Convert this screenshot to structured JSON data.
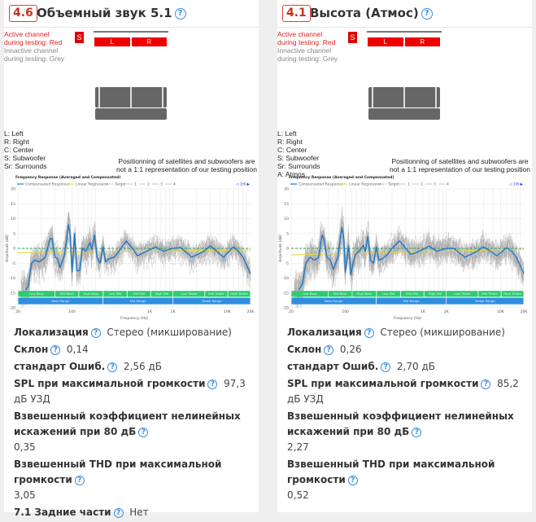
{
  "panels": [
    {
      "score": "4.6",
      "title": "Объемный звук 5.1",
      "diagram": {
        "active_1": "Active channel",
        "active_2": "during testing: Red",
        "inactive_1": "Innactive channel",
        "inactive_2": "during testing: Grey",
        "sub": "S",
        "left": "L",
        "right": "R",
        "keys": [
          "L: Left",
          "R: Right",
          "C: Center",
          "S: Subwoofer",
          "Sr: Surrounds"
        ],
        "note_1": "Positionning of satellites and subwoofers are",
        "note_2": "not a 1:1 representation of our testing position"
      },
      "specs": [
        {
          "label": "Локализация",
          "value": "Стерео (микширование)",
          "inline": true
        },
        {
          "label": "Склон",
          "value": "0,14",
          "inline": true
        },
        {
          "label": "стандарт Ошиб.",
          "value": "2,56 дБ",
          "inline": true
        },
        {
          "label": "SPL при максимальной громкости",
          "value": "97,3 дБ УЗД",
          "inline": true
        },
        {
          "label": "Взвешенный коэффициент нелинейных искажений при 80 дБ",
          "value": "0,35",
          "inline": false
        },
        {
          "label": "Взвешенный THD при максимальной громкости",
          "value": "3,05",
          "inline": false
        },
        {
          "label": "7.1 Задние части",
          "value": "Нет",
          "inline": true
        }
      ]
    },
    {
      "score": "4.1",
      "title": "Высота (Атмос)",
      "diagram": {
        "active_1": "Active channel",
        "active_2": "during testing: Red",
        "inactive_1": "Innactive channel",
        "inactive_2": "during testing: Grey",
        "sub": "S",
        "left": "L",
        "right": "R",
        "keys": [
          "L: Left",
          "R: Right",
          "C: Center",
          "S: Subwoofer",
          "Sr: Surrounds",
          "A: Atmos"
        ],
        "note_1": "Positionning of satellites and subwoofers are",
        "note_2": "not a 1:1 representation of our testing position"
      },
      "specs": [
        {
          "label": "Локализация",
          "value": "Стерео (микширование)",
          "inline": true
        },
        {
          "label": "Склон",
          "value": "0,26",
          "inline": true
        },
        {
          "label": "стандарт Ошиб.",
          "value": "2,70 дБ",
          "inline": true
        },
        {
          "label": "SPL при максимальной громкости",
          "value": "85,2 дБ УЗД",
          "inline": true
        },
        {
          "label": "Взвешенный коэффициент нелинейных искажений при 80 дБ",
          "value": "2,27",
          "inline": false
        },
        {
          "label": "Взвешенный THD при максимальной громкости",
          "value": "0,52",
          "inline": false
        }
      ]
    }
  ],
  "help_glyph": "?",
  "chart_data": [
    {
      "type": "line",
      "title": "Frequency Response (Averaged and Compensated)",
      "xlabel": "Frequency (Hz)",
      "ylabel": "Amplitude (dB)",
      "xscale": "log",
      "xlim": [
        20,
        20000
      ],
      "ylim": [
        -20,
        20
      ],
      "yticks": [
        20,
        15,
        10,
        5,
        0,
        -5,
        -10,
        -15,
        -20
      ],
      "xticks": [
        [
          20,
          "20"
        ],
        [
          100,
          "100"
        ],
        [
          1000,
          "1K"
        ],
        [
          2000,
          "2K"
        ],
        [
          10000,
          "10K"
        ],
        [
          20000,
          "20K"
        ]
      ],
      "legend": [
        "Compensated Response",
        "Linear Regression",
        "Target",
        "1",
        "2",
        "3",
        "4"
      ],
      "pager": "◁ 1/6 ▶",
      "colors": {
        "response": "#1f78c8",
        "regression": "#e8d53a",
        "target": "#2ca05a",
        "samples": "#aaaaaa",
        "bands": "#2ecc71",
        "ranges": "#2e8fe0"
      },
      "bands": [
        [
          "Low Bass",
          20,
          60
        ],
        [
          "Mid Bass",
          60,
          122
        ],
        [
          "High Bass",
          122,
          252
        ],
        [
          "Low Mid",
          252,
          513
        ],
        [
          "Mid Mid",
          513,
          1030
        ],
        [
          "High Mid",
          1030,
          2000
        ],
        [
          "Low Treble",
          2000,
          5150
        ],
        [
          "Mid Treble",
          5150,
          10200
        ],
        [
          "High Treble",
          10200,
          20000
        ]
      ],
      "ranges": [
        [
          "Bass Range",
          20,
          250
        ],
        [
          "Mid Range",
          250,
          2000
        ],
        [
          "Treble Range",
          2000,
          20000
        ]
      ],
      "regression": [
        [
          20,
          -1.5
        ],
        [
          20000,
          -0.5
        ]
      ],
      "response": [
        [
          25,
          -14
        ],
        [
          27,
          -13
        ],
        [
          30,
          -5
        ],
        [
          33,
          -4
        ],
        [
          38,
          -4.5
        ],
        [
          45,
          -3
        ],
        [
          52,
          3.3
        ],
        [
          55,
          3.3
        ],
        [
          60,
          -3
        ],
        [
          65,
          -3.5
        ],
        [
          70,
          -6.5
        ],
        [
          80,
          -2
        ],
        [
          90,
          8
        ],
        [
          95,
          4
        ],
        [
          100,
          -8
        ],
        [
          108,
          5
        ],
        [
          115,
          -7.5
        ],
        [
          125,
          -7.5
        ],
        [
          135,
          0
        ],
        [
          150,
          -1
        ],
        [
          170,
          2
        ],
        [
          180,
          -0.5
        ],
        [
          195,
          4.5
        ],
        [
          210,
          -3
        ],
        [
          230,
          -5
        ],
        [
          250,
          0.5
        ],
        [
          270,
          -4.5
        ],
        [
          300,
          -3.5
        ],
        [
          350,
          -3
        ],
        [
          400,
          -1
        ],
        [
          500,
          2.5
        ],
        [
          600,
          0
        ],
        [
          700,
          -2.5
        ],
        [
          900,
          -1
        ],
        [
          1200,
          0.5
        ],
        [
          1500,
          -1
        ],
        [
          2000,
          0
        ],
        [
          2500,
          0.3
        ],
        [
          3500,
          -3
        ],
        [
          5000,
          -1
        ],
        [
          6000,
          0.8
        ],
        [
          7000,
          -0.5
        ],
        [
          9000,
          -3
        ],
        [
          12000,
          0.5
        ],
        [
          14000,
          -1
        ],
        [
          16000,
          -3
        ],
        [
          20000,
          -8.5
        ]
      ]
    },
    {
      "type": "line",
      "title": "Frequency Response (Averaged and Compensated)",
      "xlabel": "Frequency (Hz)",
      "ylabel": "Amplitude (dB)",
      "xscale": "log",
      "xlim": [
        20,
        20000
      ],
      "ylim": [
        -20,
        20
      ],
      "yticks": [
        20,
        15,
        10,
        5,
        0,
        -5,
        -10,
        -15,
        -20
      ],
      "xticks": [
        [
          20,
          "20"
        ],
        [
          100,
          "100"
        ],
        [
          1000,
          "1K"
        ],
        [
          2000,
          "2K"
        ],
        [
          10000,
          "10K"
        ],
        [
          20000,
          "20K"
        ]
      ],
      "legend": [
        "Compensated Response",
        "Linear Regression",
        "Target",
        "1",
        "2",
        "3",
        "4"
      ],
      "pager": "◁ 1/6 ▶",
      "colors": {
        "response": "#1f78c8",
        "regression": "#e8d53a",
        "target": "#2ca05a",
        "samples": "#aaaaaa",
        "bands": "#2ecc71",
        "ranges": "#2e8fe0"
      },
      "bands": [
        [
          "Low Bass",
          20,
          60
        ],
        [
          "Mid Bass",
          60,
          122
        ],
        [
          "High Bass",
          122,
          252
        ],
        [
          "Low Mid",
          252,
          513
        ],
        [
          "Mid Mid",
          513,
          1030
        ],
        [
          "High Mid",
          1030,
          2000
        ],
        [
          "Low Treble",
          2000,
          5150
        ],
        [
          "Mid Treble",
          5150,
          10200
        ],
        [
          "High Treble",
          10200,
          20000
        ]
      ],
      "ranges": [
        [
          "Bass Range",
          20,
          250
        ],
        [
          "Mid Range",
          250,
          2000
        ],
        [
          "Treble Range",
          2000,
          20000
        ]
      ],
      "regression": [
        [
          20,
          -2.2
        ],
        [
          20000,
          -0.3
        ]
      ],
      "response": [
        [
          25,
          -14
        ],
        [
          28,
          -12
        ],
        [
          31,
          -5
        ],
        [
          35,
          -3
        ],
        [
          40,
          -4
        ],
        [
          45,
          -3
        ],
        [
          50,
          4.5
        ],
        [
          53,
          3
        ],
        [
          58,
          -3
        ],
        [
          64,
          -4
        ],
        [
          70,
          -7
        ],
        [
          80,
          -3
        ],
        [
          90,
          7
        ],
        [
          96,
          3
        ],
        [
          100,
          -8
        ],
        [
          110,
          1
        ],
        [
          118,
          -9
        ],
        [
          125,
          -5
        ],
        [
          135,
          -2
        ],
        [
          150,
          -1
        ],
        [
          170,
          1
        ],
        [
          180,
          -1
        ],
        [
          195,
          4
        ],
        [
          210,
          -4
        ],
        [
          230,
          -5
        ],
        [
          250,
          0.5
        ],
        [
          270,
          -4
        ],
        [
          300,
          -3.5
        ],
        [
          350,
          -2
        ],
        [
          400,
          0
        ],
        [
          500,
          2.5
        ],
        [
          600,
          0
        ],
        [
          700,
          -2
        ],
        [
          900,
          -1
        ],
        [
          1200,
          0.8
        ],
        [
          1500,
          -1
        ],
        [
          2000,
          0
        ],
        [
          2500,
          0
        ],
        [
          3500,
          -3
        ],
        [
          5000,
          -1
        ],
        [
          6000,
          0.6
        ],
        [
          7000,
          -0.5
        ],
        [
          9000,
          -2.5
        ],
        [
          12000,
          0.2
        ],
        [
          14000,
          -1
        ],
        [
          16000,
          -3
        ],
        [
          20000,
          -8.5
        ]
      ]
    }
  ]
}
